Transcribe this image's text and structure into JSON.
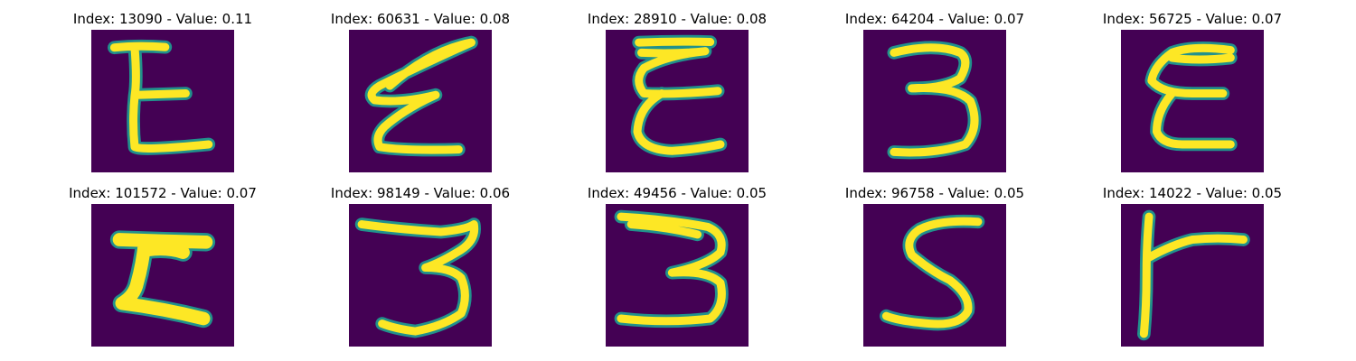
{
  "colors": {
    "background": "#440154",
    "stroke_core": "#fde725",
    "stroke_edge": "#21918c"
  },
  "panels": [
    {
      "index": "13090",
      "value": "0.11",
      "title": "Index: 13090 - Value: 0.11",
      "glyph": "E"
    },
    {
      "index": "60631",
      "value": "0.08",
      "title": "Index: 60631 - Value: 0.08",
      "glyph": "E"
    },
    {
      "index": "28910",
      "value": "0.08",
      "title": "Index: 28910 - Value: 0.08",
      "glyph": "E"
    },
    {
      "index": "64204",
      "value": "0.07",
      "title": "Index: 64204 - Value: 0.07",
      "glyph": "3"
    },
    {
      "index": "56725",
      "value": "0.07",
      "title": "Index: 56725 - Value: 0.07",
      "glyph": "E"
    },
    {
      "index": "101572",
      "value": "0.07",
      "title": "Index: 101572 - Value: 0.07",
      "glyph": "Z"
    },
    {
      "index": "98149",
      "value": "0.06",
      "title": "Index: 98149 - Value: 0.06",
      "glyph": "3"
    },
    {
      "index": "49456",
      "value": "0.05",
      "title": "Index: 49456 - Value: 0.05",
      "glyph": "3"
    },
    {
      "index": "96758",
      "value": "0.05",
      "title": "Index: 96758 - Value: 0.05",
      "glyph": "S"
    },
    {
      "index": "14022",
      "value": "0.05",
      "title": "Index: 14022 - Value: 0.05",
      "glyph": "T"
    }
  ]
}
